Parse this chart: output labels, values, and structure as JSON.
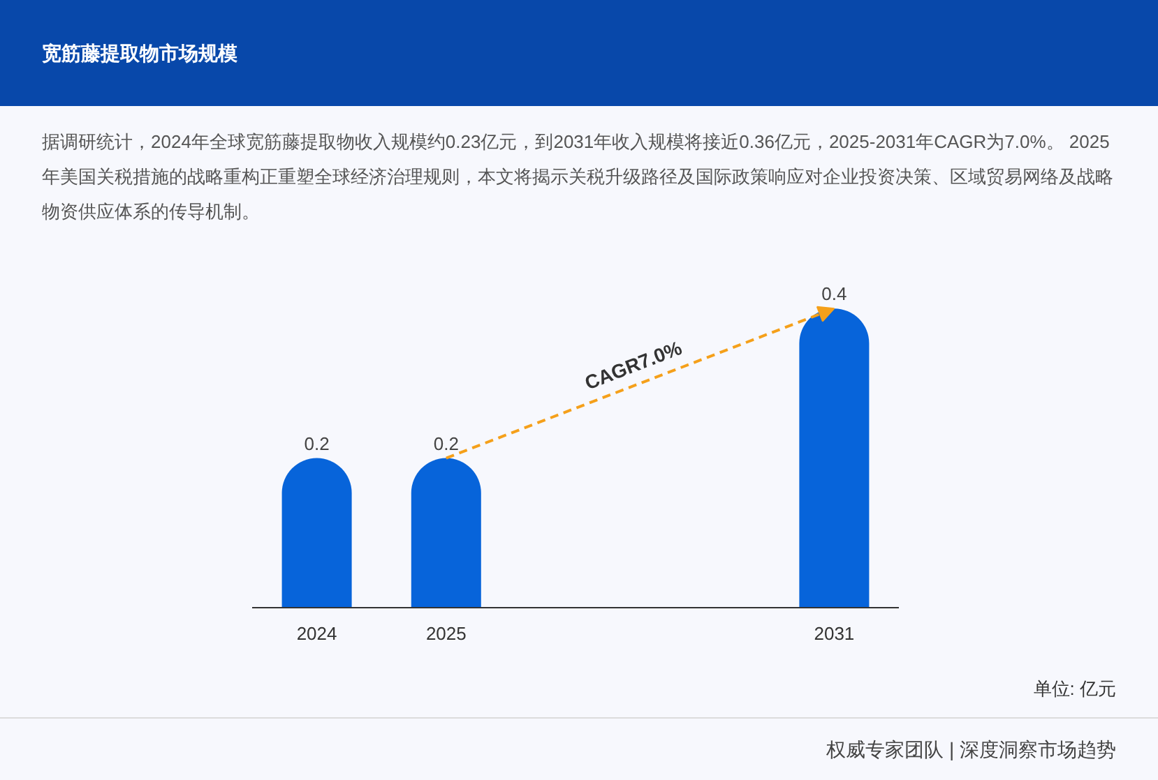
{
  "chart_data": {
    "type": "bar",
    "title": "宽筋藤提取物市场规模",
    "subtitle": "据调研统计，2024年全球宽筋藤提取物收入规模约0.23亿元，到2031年收入规模将接近0.36亿元，2025-2031年CAGR为7.0%。 2025年美国关税措施的战略重构正重塑全球经济治理规则，本文将揭示关税升级路径及国际政策响应对企业投资决策、区域贸易网络及战略物资供应体系的传导机制。",
    "categories": [
      "2024",
      "2025",
      null,
      null,
      "2031"
    ],
    "values": [
      0.2,
      0.2,
      null,
      null,
      0.4
    ],
    "color": "#0764da",
    "data_labels": true,
    "annotations": [
      "CAGR7.0%",
      "单位: 亿元",
      "权威专家团队 | 深度洞察市场趋势"
    ]
  }
}
